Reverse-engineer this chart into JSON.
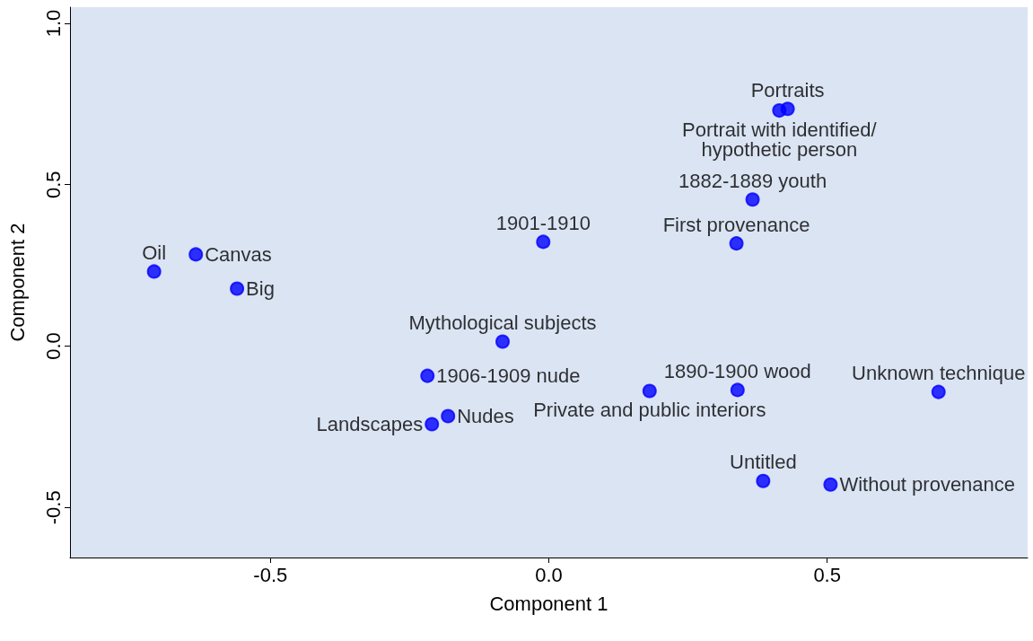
{
  "chart_data": {
    "type": "scatter",
    "xlabel": "Component 1",
    "ylabel": "Component 2",
    "xlim": [
      -0.86,
      0.86
    ],
    "ylim": [
      -0.655,
      1.05
    ],
    "xticks": [
      -0.5,
      {
        "value": 0,
        "label": "0.0"
      },
      0.5
    ],
    "yticks": [
      -0.5,
      {
        "value": 0,
        "label": "0.0"
      },
      0.5,
      {
        "value": 1,
        "label": "1.0"
      }
    ],
    "grid": false,
    "legend": false,
    "marker": "circle",
    "series": [
      {
        "name": "Oil",
        "color": "#0000ff",
        "x": [
          -0.709
        ],
        "values": [
          0.231
        ]
      },
      {
        "name": "Canvas",
        "color": "#0000ff",
        "x": [
          -0.634
        ],
        "values": [
          0.284
        ]
      },
      {
        "name": "Big",
        "color": "#0000ff",
        "x": [
          -0.56
        ],
        "values": [
          0.178
        ]
      },
      {
        "name": "1901-1910",
        "color": "#0000ff",
        "x": [
          -0.01
        ],
        "values": [
          0.323
        ]
      },
      {
        "name": "Mythological subjects",
        "color": "#0000ff",
        "x": [
          -0.083
        ],
        "values": [
          0.014
        ]
      },
      {
        "name": "1906-1909 nude",
        "color": "#0000ff",
        "x": [
          -0.218
        ],
        "values": [
          -0.092
        ]
      },
      {
        "name": "Nudes",
        "color": "#0000ff",
        "x": [
          -0.181
        ],
        "values": [
          -0.217
        ]
      },
      {
        "name": "Landscapes",
        "color": "#0000ff",
        "x": [
          -0.21
        ],
        "values": [
          -0.242
        ]
      },
      {
        "name": "Private and public interiors",
        "color": "#0000ff",
        "x": [
          0.181
        ],
        "values": [
          -0.139
        ]
      },
      {
        "name": "1890-1900 wood",
        "color": "#0000ff",
        "x": [
          0.339
        ],
        "values": [
          -0.136
        ]
      },
      {
        "name": "Unknown technique",
        "color": "#0000ff",
        "x": [
          0.7
        ],
        "values": [
          -0.142
        ]
      },
      {
        "name": "Untitled",
        "color": "#0000ff",
        "x": [
          0.385
        ],
        "values": [
          -0.418
        ]
      },
      {
        "name": "Without provenance",
        "color": "#0000ff",
        "x": [
          0.506
        ],
        "values": [
          -0.429
        ]
      },
      {
        "name": "First provenance",
        "color": "#0000ff",
        "x": [
          0.337
        ],
        "values": [
          0.318
        ]
      },
      {
        "name": "1882-1889 youth",
        "color": "#0000ff",
        "x": [
          0.366
        ],
        "values": [
          0.454
        ]
      },
      {
        "name": "Portraits",
        "color": "#0000ff",
        "x": [
          0.429
        ],
        "values": [
          0.735
        ]
      },
      {
        "name": "Portrait with identified/hypothetic person",
        "color": "#0000ff",
        "x": [
          0.414
        ],
        "values": [
          0.73
        ]
      }
    ]
  }
}
